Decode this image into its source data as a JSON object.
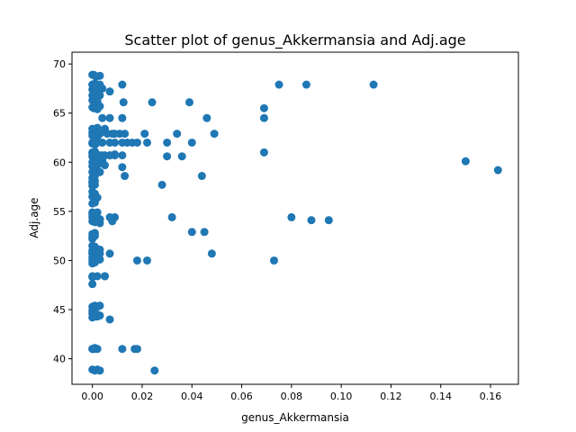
{
  "chart_data": {
    "type": "scatter",
    "title": "Scatter plot of genus_Akkermansia and Adj.age",
    "xlabel": "genus_Akkermansia",
    "ylabel": "Adj.age",
    "xlim": [
      -0.0082,
      0.1712
    ],
    "ylim": [
      37.4,
      71.2
    ],
    "xticks": [
      "0.00",
      "0.02",
      "0.04",
      "0.06",
      "0.08",
      "0.10",
      "0.12",
      "0.14",
      "0.16"
    ],
    "xtick_values": [
      0.0,
      0.02,
      0.04,
      0.06,
      0.08,
      0.1,
      0.12,
      0.14,
      0.16
    ],
    "yticks": [
      "40",
      "45",
      "50",
      "55",
      "60",
      "65",
      "70"
    ],
    "ytick_values": [
      40,
      45,
      50,
      55,
      60,
      65,
      70
    ],
    "grid": false,
    "marker_color": "#1f77b4",
    "series": [
      {
        "x": [
          0.0,
          0.0005,
          0.001,
          0.0015,
          0.003,
          0.0,
          0.001,
          0.003,
          0.0,
          0.001,
          0.002,
          0.004,
          0.007,
          0.0,
          0.001,
          0.002,
          0.003,
          0.0,
          0.001,
          0.002,
          0.0,
          0.0005,
          0.002,
          0.003,
          0.004,
          0.007,
          0.0,
          0.001,
          0.002,
          0.0,
          0.001,
          0.0005,
          0.0015,
          0.002,
          0.003,
          0.005,
          0.006,
          0.008,
          0.009,
          0.0,
          0.001,
          0.002,
          0.004,
          0.0,
          0.001,
          0.003,
          0.005,
          0.007,
          0.009,
          0.0,
          0.001,
          0.002,
          0.003,
          0.0,
          0.001,
          0.002,
          0.004,
          0.0,
          0.001,
          0.002,
          0.0,
          0.001,
          0.003,
          0.0,
          0.001,
          0.0,
          0.0,
          0.001,
          0.0,
          0.001,
          0.0,
          0.001,
          0.002,
          0.003,
          0.0,
          0.001,
          0.002,
          0.0,
          0.001,
          0.0,
          0.001,
          0.0,
          0.001,
          0.003,
          0.0,
          0.001,
          0.0,
          0.001,
          0.0,
          0.0,
          0.001,
          0.003,
          0.0,
          0.0,
          0.002,
          0.0,
          0.001,
          0.003,
          0.0,
          0.001,
          0.0,
          0.001,
          0.003,
          0.0,
          0.001,
          0.0,
          0.0,
          0.002,
          0.0,
          0.001,
          0.003,
          0.0,
          0.001,
          0.002,
          0.005,
          0.0,
          0.0,
          0.001,
          0.002,
          0.003,
          0.0,
          0.001,
          0.002,
          0.0,
          0.001,
          0.0,
          0.001,
          0.002,
          0.0,
          0.001,
          0.002,
          0.003,
          0.0,
          0.001,
          0.0,
          0.001,
          0.002,
          0.0,
          0.001,
          0.0,
          0.001,
          0.002,
          0.0,
          0.001,
          0.003,
          0.0,
          0.001,
          0.004,
          0.012,
          0.0125,
          0.024,
          0.039,
          0.075,
          0.086,
          0.113,
          0.012,
          0.069,
          0.011,
          0.046,
          0.069,
          0.013,
          0.021,
          0.034,
          0.049,
          0.007,
          0.009,
          0.012,
          0.014,
          0.016,
          0.018,
          0.022,
          0.03,
          0.04,
          0.004,
          0.007,
          0.009,
          0.012,
          0.03,
          0.036,
          0.069,
          0.005,
          0.012,
          0.013,
          0.044,
          0.15,
          0.163,
          0.028,
          0.007,
          0.009,
          0.032,
          0.08,
          0.088,
          0.095,
          0.008,
          0.04,
          0.045,
          0.007,
          0.048,
          0.018,
          0.022,
          0.073,
          0.005,
          0.007,
          0.012,
          0.017,
          0.018,
          0.025
        ],
        "y": [
          68.9,
          68.9,
          68.8,
          68.7,
          68.8,
          67.9,
          67.9,
          67.9,
          67.4,
          67.5,
          67.2,
          67.5,
          67.2,
          66.8,
          66.8,
          66.9,
          66.8,
          66.3,
          66.1,
          66.2,
          65.6,
          65.5,
          65.4,
          65.7,
          64.5,
          64.5,
          63.4,
          63.3,
          63.5,
          63.0,
          62.9,
          62.8,
          62.9,
          63.0,
          62.9,
          63.4,
          62.9,
          62.9,
          62.9,
          62.0,
          61.9,
          62.0,
          62.0,
          61.0,
          61.1,
          60.7,
          60.7,
          60.7,
          60.8,
          60.6,
          60.4,
          60.5,
          60.3,
          60.0,
          59.9,
          60.1,
          60.2,
          59.6,
          59.5,
          59.7,
          59.0,
          58.8,
          59.0,
          58.4,
          58.6,
          57.9,
          57.6,
          57.7,
          57.0,
          56.8,
          56.5,
          56.3,
          56.4,
          54.2,
          55.8,
          55.9,
          54.9,
          54.7,
          54.8,
          54.4,
          54.5,
          54.0,
          53.9,
          53.8,
          52.7,
          52.8,
          52.4,
          52.5,
          52.2,
          51.5,
          51.4,
          51.1,
          51.0,
          50.8,
          50.9,
          50.7,
          50.6,
          50.7,
          50.3,
          50.4,
          50.0,
          49.9,
          50.1,
          49.7,
          49.8,
          48.4,
          48.3,
          48.4,
          47.6,
          45.4,
          45.4,
          45.3,
          45.2,
          45.3,
          48.4,
          44.9,
          44.6,
          44.6,
          44.5,
          44.4,
          44.2,
          44.3,
          44.3,
          41.0,
          41.0,
          41.0,
          41.1,
          41.0,
          38.9,
          38.8,
          38.9,
          38.8,
          67.9,
          68.0,
          62.7,
          62.8,
          62.6,
          61.9,
          61.8,
          60.9,
          60.8,
          60.7,
          54.9,
          54.8,
          54.2,
          58.0,
          58.1,
          59.9,
          67.9,
          66.1,
          66.1,
          66.1,
          67.9,
          67.9,
          67.9,
          64.5,
          65.5,
          62.9,
          64.5,
          64.5,
          62.9,
          62.9,
          62.9,
          62.9,
          62.0,
          62.0,
          62.0,
          62.0,
          62.0,
          62.0,
          62.0,
          62.0,
          62.0,
          60.7,
          60.7,
          60.7,
          60.7,
          60.6,
          60.6,
          61.0,
          59.7,
          59.5,
          58.6,
          58.6,
          60.1,
          59.2,
          57.7,
          54.4,
          54.4,
          54.4,
          54.4,
          54.1,
          54.1,
          54.0,
          52.9,
          52.9,
          50.7,
          50.7,
          50.0,
          50.0,
          50.0,
          48.4,
          44.0,
          41.0,
          41.0,
          41.0,
          38.8
        ]
      }
    ]
  }
}
